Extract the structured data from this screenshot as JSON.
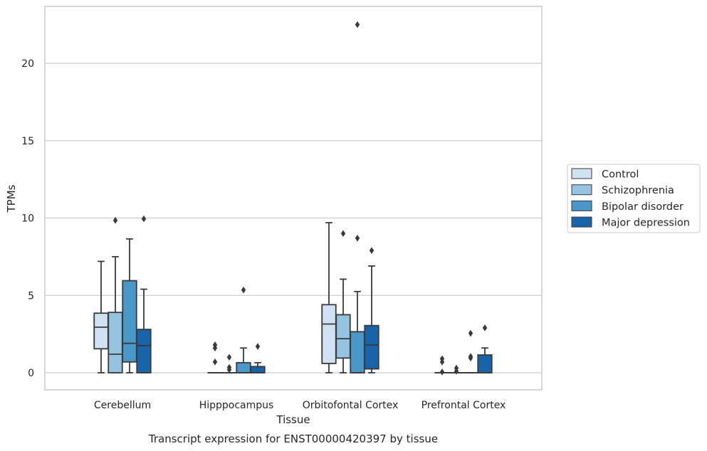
{
  "chart_data": {
    "type": "box",
    "title": "Transcript expression for ENST00000420397 by tissue",
    "xlabel": "Tissue",
    "ylabel": "TPMs",
    "ylim": [
      -1.1,
      23.5
    ],
    "yticks": [
      0,
      5,
      10,
      15,
      20
    ],
    "grid": "horizontal",
    "legend_position": "right",
    "categories": [
      "Cerebellum",
      "Hipppocampus",
      "Orbitofontal Cortex",
      "Prefrontal Cortex"
    ],
    "series": [
      {
        "name": "Control",
        "color": "#d0e1f2",
        "boxes": [
          {
            "whislo": 0,
            "q1": 1.55,
            "med": 2.95,
            "q3": 3.85,
            "whishi": 7.2,
            "fliers": []
          },
          {
            "whislo": 0,
            "q1": 0,
            "med": 0,
            "q3": 0,
            "whishi": 0,
            "fliers": [
              0.7,
              1.6,
              1.8
            ]
          },
          {
            "whislo": 0,
            "q1": 0.6,
            "med": 3.15,
            "q3": 4.4,
            "whishi": 9.7,
            "fliers": []
          },
          {
            "whislo": 0,
            "q1": 0,
            "med": 0,
            "q3": 0,
            "whishi": 0,
            "fliers": [
              0.05,
              0.7,
              0.9
            ]
          }
        ]
      },
      {
        "name": "Schizophrenia",
        "color": "#94c4df",
        "boxes": [
          {
            "whislo": 0,
            "q1": 0,
            "med": 1.2,
            "q3": 3.9,
            "whishi": 7.5,
            "fliers": [
              9.85
            ]
          },
          {
            "whislo": 0,
            "q1": 0,
            "med": 0,
            "q3": 0,
            "whishi": 0,
            "fliers": [
              0.2,
              0.35,
              1.0
            ]
          },
          {
            "whislo": 0,
            "q1": 0.95,
            "med": 2.2,
            "q3": 3.75,
            "whishi": 6.05,
            "fliers": [
              9.0
            ]
          },
          {
            "whislo": 0,
            "q1": 0,
            "med": 0,
            "q3": 0,
            "whishi": 0,
            "fliers": [
              0.1,
              0.3
            ]
          }
        ]
      },
      {
        "name": "Bipolar disorder",
        "color": "#4a98c9",
        "boxes": [
          {
            "whislo": 0,
            "q1": 0.7,
            "med": 1.9,
            "q3": 5.95,
            "whishi": 8.65,
            "fliers": []
          },
          {
            "whislo": 0,
            "q1": 0,
            "med": 0,
            "q3": 0.65,
            "whishi": 1.6,
            "fliers": [
              5.35
            ]
          },
          {
            "whislo": 0,
            "q1": 0,
            "med": 0,
            "q3": 2.65,
            "whishi": 5.25,
            "fliers": [
              8.7,
              22.5
            ]
          },
          {
            "whislo": 0,
            "q1": 0,
            "med": 0,
            "q3": 0,
            "whishi": 0,
            "fliers": [
              0.95,
              1.05,
              2.55
            ]
          }
        ]
      },
      {
        "name": "Major depression",
        "color": "#1764ab",
        "boxes": [
          {
            "whislo": 0,
            "q1": 0,
            "med": 1.75,
            "q3": 2.8,
            "whishi": 5.4,
            "fliers": [
              9.95
            ]
          },
          {
            "whislo": 0,
            "q1": 0,
            "med": 0,
            "q3": 0.4,
            "whishi": 0.65,
            "fliers": [
              1.7
            ]
          },
          {
            "whislo": 0,
            "q1": 0.25,
            "med": 1.8,
            "q3": 3.05,
            "whishi": 6.9,
            "fliers": [
              7.9
            ]
          },
          {
            "whislo": 0,
            "q1": 0,
            "med": 0,
            "q3": 1.15,
            "whishi": 1.6,
            "fliers": [
              2.9
            ]
          }
        ]
      }
    ]
  }
}
